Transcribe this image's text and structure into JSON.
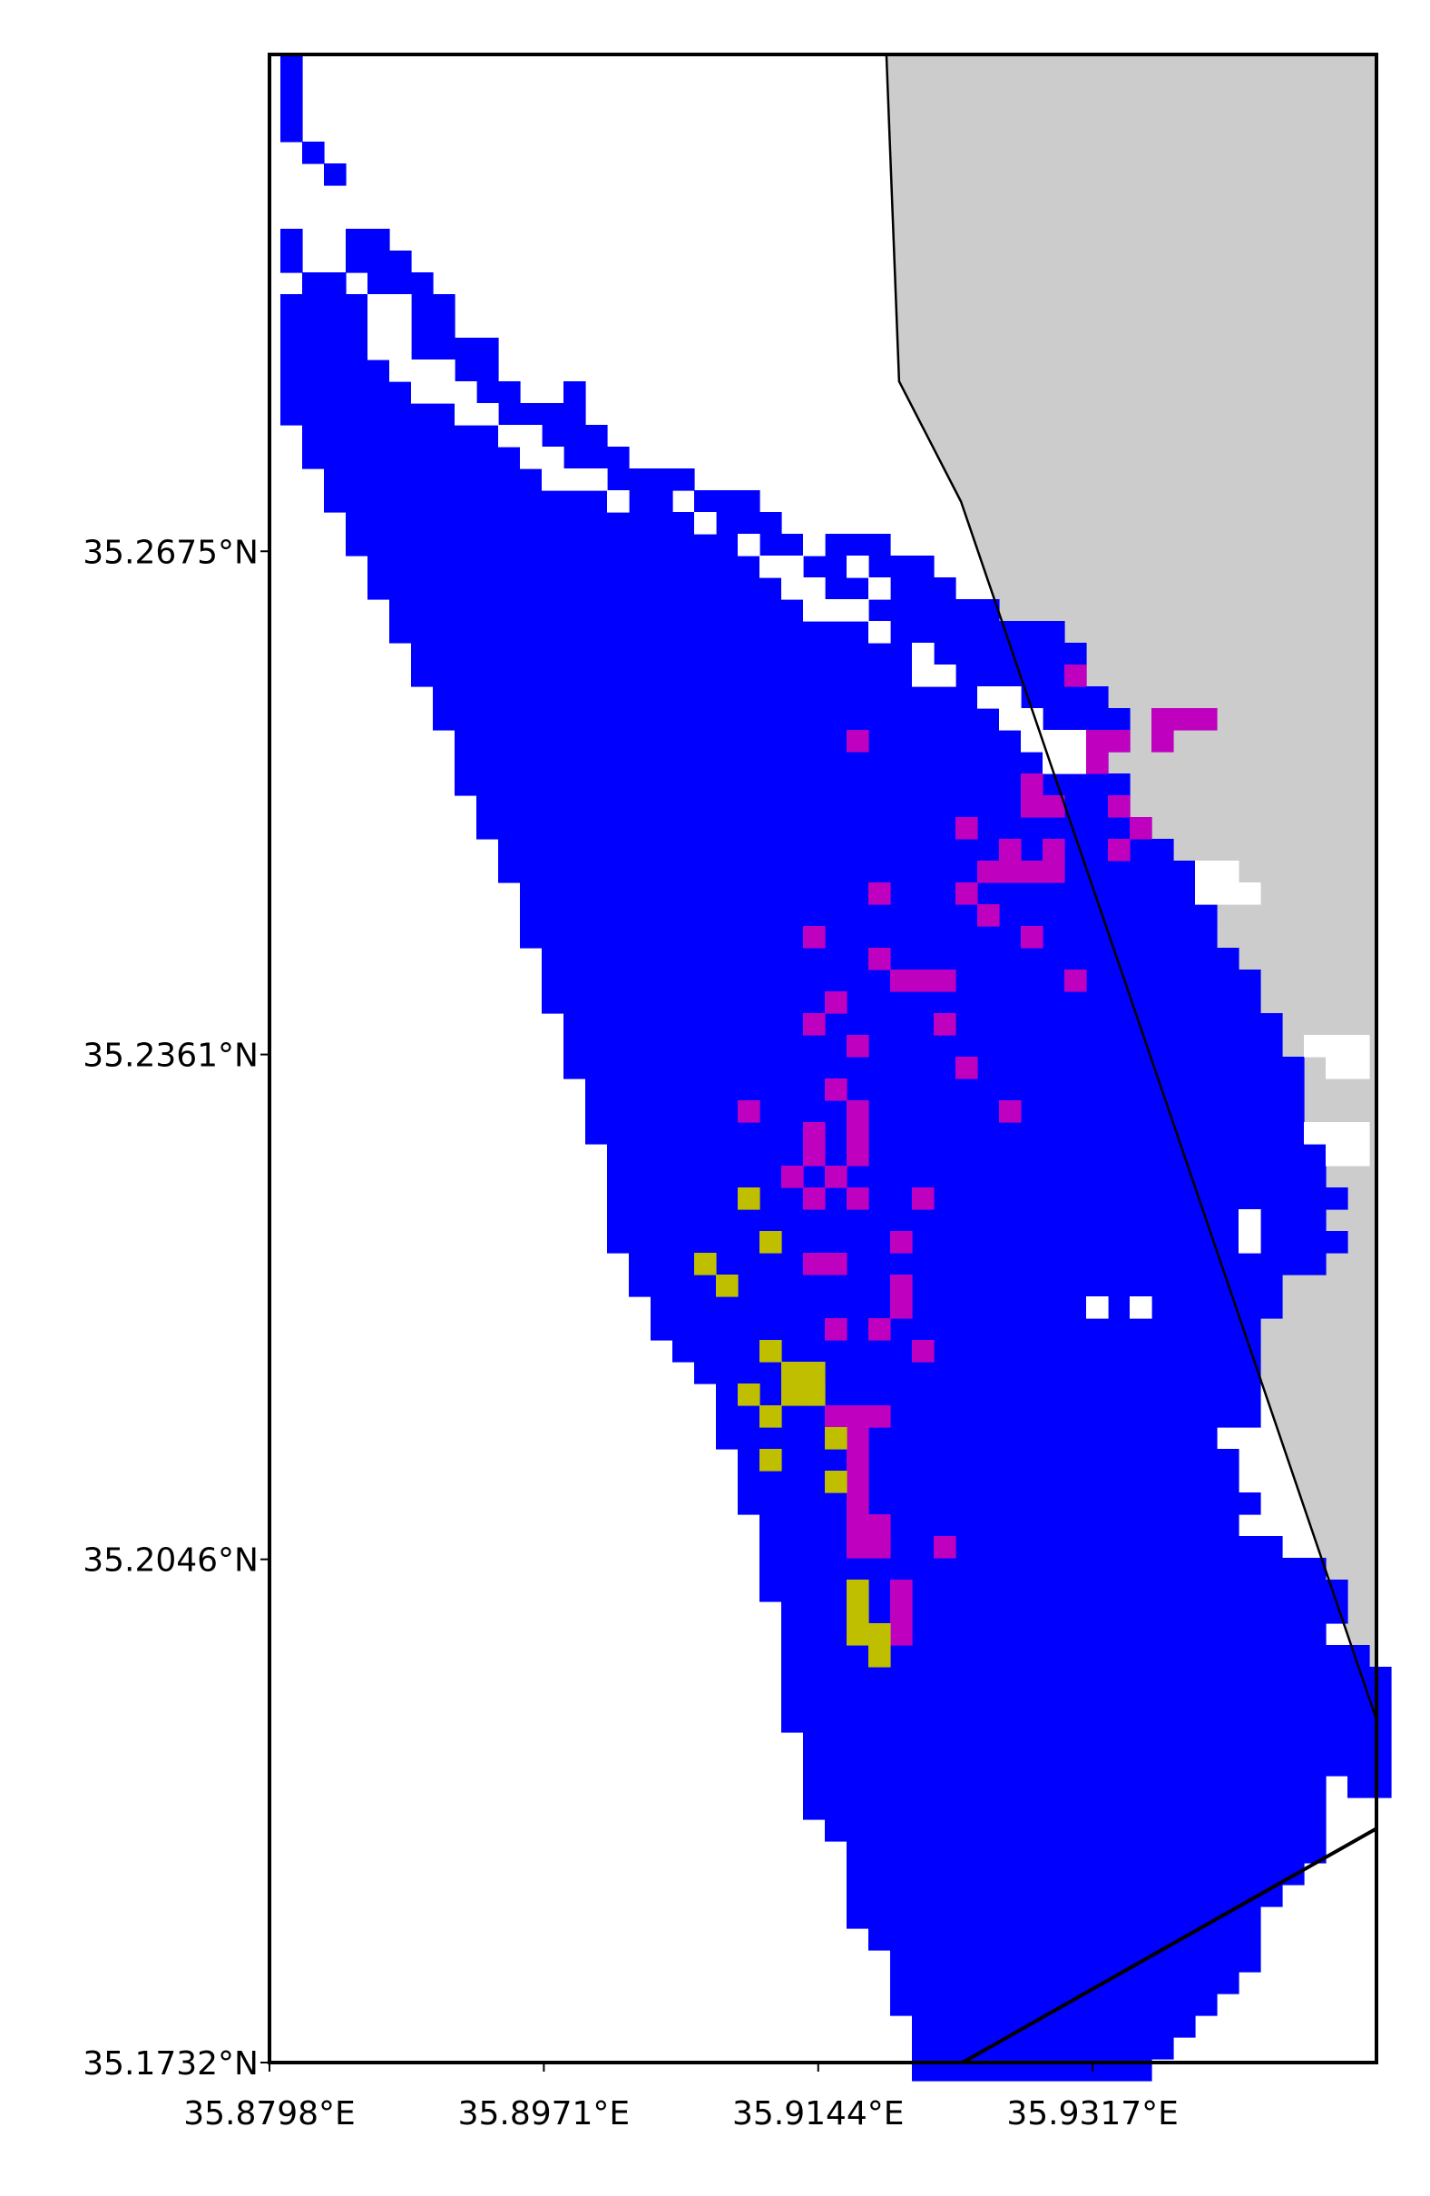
{
  "map": {
    "colors": {
      "blue": "#0000ff",
      "magenta": "#bf00bf",
      "yellow": "#bfbf00",
      "land": "#cccccc",
      "frame": "#000000",
      "background": "#ffffff"
    },
    "bounds": {
      "lon_min": 35.8798,
      "lon_max": 35.9496,
      "lat_min": 35.1732,
      "lat_max": 35.2985
    },
    "x_ticks": [
      {
        "value": 35.8798,
        "label": "35.8798°E"
      },
      {
        "value": 35.8971,
        "label": "35.8971°E"
      },
      {
        "value": 35.9144,
        "label": "35.9144°E"
      },
      {
        "value": 35.9317,
        "label": "35.9317°E"
      }
    ],
    "y_ticks": [
      {
        "value": 35.2675,
        "label": "35.2675°N"
      },
      {
        "value": 35.2361,
        "label": "35.2361°N"
      },
      {
        "value": 35.2046,
        "label": "35.2046°N"
      },
      {
        "value": 35.1732,
        "label": "35.1732°N"
      }
    ],
    "grid": false,
    "legend": "none",
    "land_polygon": [
      [
        35.9187,
        35.2985
      ],
      [
        35.9496,
        35.2985
      ],
      [
        35.9496,
        35.1946
      ],
      [
        35.936,
        35.2341
      ],
      [
        35.9234,
        35.2706
      ],
      [
        35.9195,
        35.2781
      ]
    ],
    "coastline_segments": [
      [
        [
          35.9187,
          35.2985
        ],
        [
          35.9195,
          35.2781
        ],
        [
          35.9234,
          35.2706
        ],
        [
          35.936,
          35.2341
        ],
        [
          35.9496,
          35.1946
        ]
      ],
      [
        [
          35.9235,
          35.1732
        ],
        [
          35.9496,
          35.1878
        ]
      ]
    ]
  }
}
